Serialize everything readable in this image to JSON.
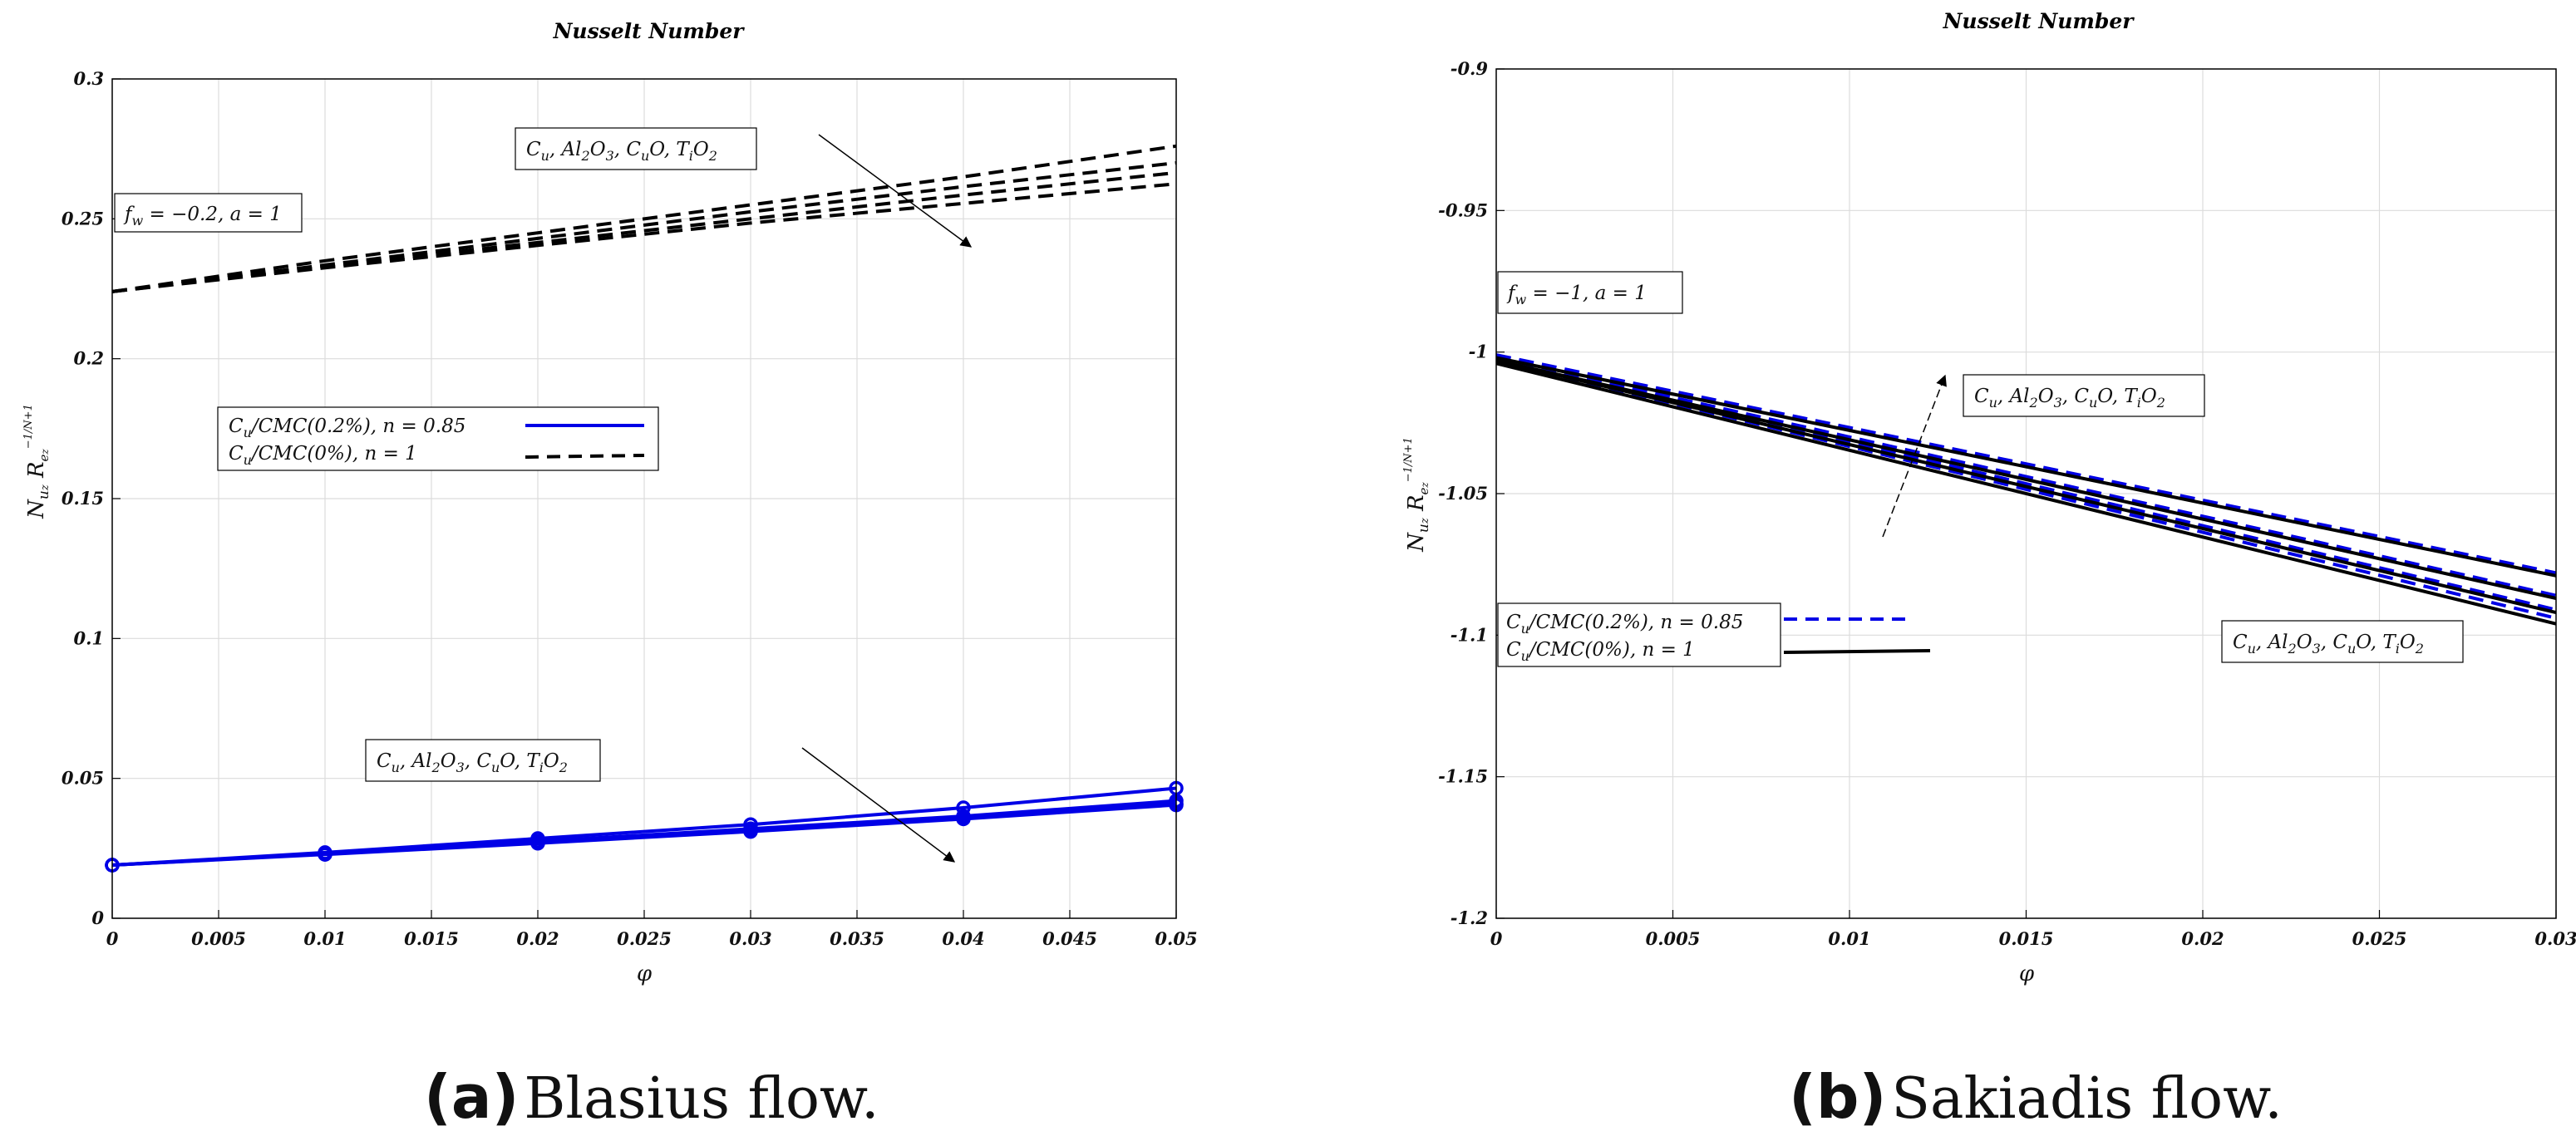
{
  "chart_data": [
    {
      "type": "line",
      "title": "Nusselt Number",
      "xlabel": "φ",
      "ylabel": "Nu_z Re_z^(-1/(N+1))",
      "xlim": [
        0,
        0.05
      ],
      "ylim": [
        0,
        0.3
      ],
      "grid": true,
      "xticks": [
        "0",
        "0.005",
        "0.01",
        "0.015",
        "0.02",
        "0.025",
        "0.03",
        "0.035",
        "0.04",
        "0.045",
        "0.05"
      ],
      "yticks": [
        "0",
        "0.05",
        "0.1",
        "0.15",
        "0.2",
        "0.25",
        "0.3"
      ],
      "x": [
        0,
        0.01,
        0.02,
        0.03,
        0.04,
        0.05
      ],
      "series": [
        {
          "name": "Cu/CMC(0.2%), n=0.85 — Cu",
          "style": "solid-marker",
          "color": "#0000e6",
          "values": [
            0.019,
            0.0235,
            0.0285,
            0.0335,
            0.0395,
            0.0465
          ]
        },
        {
          "name": "Cu/CMC(0.2%), n=0.85 — Al2O3",
          "style": "solid-marker",
          "color": "#0000e6",
          "values": [
            0.019,
            0.0232,
            0.0275,
            0.032,
            0.0365,
            0.042
          ]
        },
        {
          "name": "Cu/CMC(0.2%), n=0.85 — CuO",
          "style": "solid-marker",
          "color": "#0000e6",
          "values": [
            0.019,
            0.023,
            0.0272,
            0.0315,
            0.036,
            0.041
          ]
        },
        {
          "name": "Cu/CMC(0.2%), n=0.85 — TiO2",
          "style": "solid-marker",
          "color": "#0000e6",
          "values": [
            0.019,
            0.0228,
            0.0268,
            0.031,
            0.0355,
            0.0405
          ]
        },
        {
          "name": "Cu/CMC(0%), n=1 — Cu",
          "style": "dashed",
          "color": "#000000",
          "values": [
            0.224,
            0.235,
            0.245,
            0.255,
            0.265,
            0.276
          ]
        },
        {
          "name": "Cu/CMC(0%), n=1 — Al2O3",
          "style": "dashed",
          "color": "#000000",
          "values": [
            0.224,
            0.2335,
            0.243,
            0.2525,
            0.2615,
            0.27
          ]
        },
        {
          "name": "Cu/CMC(0%), n=1 — CuO",
          "style": "dashed",
          "color": "#000000",
          "values": [
            0.224,
            0.233,
            0.2415,
            0.25,
            0.2585,
            0.2665
          ]
        },
        {
          "name": "Cu/CMC(0%), n=1 — TiO2",
          "style": "dashed",
          "color": "#000000",
          "values": [
            0.224,
            0.2325,
            0.2405,
            0.2485,
            0.2555,
            0.2625
          ]
        }
      ],
      "legend": {
        "placement": "center-left",
        "entries": [
          "Cu/CMC(0.2%), n = 0.85",
          "Cu/CMC(0%), n = 1"
        ]
      },
      "annotations": [
        "f_w = −0.2, a = 1",
        "Cu, Al2O3, CuO, TiO2",
        "Cu, Al2O3, CuO, TiO2"
      ],
      "caption_letter": "(a)",
      "caption_text": "Blasius flow."
    },
    {
      "type": "line",
      "title": "Nusselt Number",
      "xlabel": "φ",
      "ylabel": "Nu_z Re_z^(-1/(N+1))",
      "xlim": [
        0,
        0.03
      ],
      "ylim": [
        -1.2,
        -0.9
      ],
      "grid": true,
      "xticks": [
        "0",
        "0.005",
        "0.01",
        "0.015",
        "0.02",
        "0.025",
        "0.03"
      ],
      "yticks": [
        "-0.9",
        "-0.95",
        "-1",
        "-1.05",
        "-1.1",
        "-1.15",
        "-1.2"
      ],
      "x": [
        0,
        0.03
      ],
      "series": [
        {
          "name": "Cu/CMC(0.2%), n=0.85 — Cu",
          "style": "dashed",
          "color": "#0000e6",
          "values": [
            -1.001,
            -1.078
          ]
        },
        {
          "name": "Cu/CMC(0.2%), n=0.85 — Al2O3",
          "style": "dashed",
          "color": "#0000e6",
          "values": [
            -1.002,
            -1.086
          ]
        },
        {
          "name": "Cu/CMC(0.2%), n=0.85 — CuO",
          "style": "dashed",
          "color": "#0000e6",
          "values": [
            -1.002,
            -1.091
          ]
        },
        {
          "name": "Cu/CMC(0.2%), n=0.85 — TiO2",
          "style": "dashed",
          "color": "#0000e6",
          "values": [
            -1.003,
            -1.094
          ]
        },
        {
          "name": "Cu/CMC(0%), n=1 — Cu",
          "style": "solid",
          "color": "#000000",
          "values": [
            -1.002,
            -1.079
          ]
        },
        {
          "name": "Cu/CMC(0%), n=1 — Al2O3",
          "style": "solid",
          "color": "#000000",
          "values": [
            -1.003,
            -1.087
          ]
        },
        {
          "name": "Cu/CMC(0%), n=1 — CuO",
          "style": "solid",
          "color": "#000000",
          "values": [
            -1.003,
            -1.092
          ]
        },
        {
          "name": "Cu/CMC(0%), n=1 — TiO2",
          "style": "solid",
          "color": "#000000",
          "values": [
            -1.004,
            -1.096
          ]
        }
      ],
      "legend": {
        "placement": "bottom-left",
        "entries": [
          "Cu/CMC(0.2%), n = 0.85",
          "Cu/CMC(0%), n = 1"
        ]
      },
      "annotations": [
        "f_w = −1, a = 1",
        "Cu, Al2O3, CuO, TiO2",
        "Cu, Al2O3, CuO, TiO2"
      ],
      "caption_letter": "(b)",
      "caption_text": "Sakiadis flow."
    }
  ]
}
